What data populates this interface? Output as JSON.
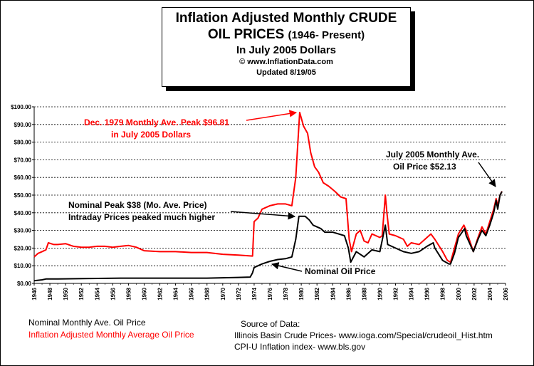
{
  "title": {
    "line1": "Inflation Adjusted Monthly CRUDE",
    "line2_main": "OIL PRICES",
    "line2_paren": "(1946- Present)",
    "line3": "In July 2005 Dollars",
    "line4": "© www.InflationData.com",
    "line5": "Updated 8/19/05"
  },
  "annotations": {
    "peak_real_1": "Dec. 1979 Monthly Ave. Peak $96.81",
    "peak_real_2": "in July 2005 Dollars",
    "peak_nominal_1": "Nominal Peak $38 (Mo. Ave. Price)",
    "peak_nominal_2": "Intraday Prices peaked much higher",
    "nominal_label": "Nominal Oil Price",
    "july2005_1": "July 2005 Monthly Ave.",
    "july2005_2": "Oil Price $52.13"
  },
  "legend": {
    "nominal": "Nominal Monthly Ave. Oil Price",
    "adjusted": "Inflation Adjusted Monthly Average Oil Price"
  },
  "source": {
    "heading": "Source of Data:",
    "line1": "Illinois Basin Crude Prices-   www.ioga.com/Special/crudeoil_Hist.htm",
    "line2": "CPI-U Inflation index-   www.bls.gov"
  },
  "colors": {
    "adjusted": "#ff0000",
    "nominal": "#000000",
    "background": "#ffffff"
  },
  "chart_data": {
    "type": "line",
    "x_range": [
      1946,
      2006
    ],
    "ylim": [
      0,
      100
    ],
    "grid": true,
    "y_ticks": [
      "$0.00",
      "$10.00",
      "$20.00",
      "$30.00",
      "$40.00",
      "$50.00",
      "$60.00",
      "$70.00",
      "$80.00",
      "$90.00",
      "$100.00"
    ],
    "x_ticks": [
      "1946",
      "1948",
      "1950",
      "1952",
      "1954",
      "1956",
      "1958",
      "1960",
      "1962",
      "1964",
      "1966",
      "1968",
      "1970",
      "1972",
      "1974",
      "1976",
      "1978",
      "1980",
      "1982",
      "1984",
      "1986",
      "1988",
      "1990",
      "1992",
      "1994",
      "1996",
      "1998",
      "2000",
      "2002",
      "2004",
      "2006"
    ],
    "series": [
      {
        "name": "Inflation Adjusted Monthly Average Oil Price",
        "color": "#ff0000",
        "points": [
          [
            1946,
            15
          ],
          [
            1946.5,
            17
          ],
          [
            1947,
            18
          ],
          [
            1947.5,
            19
          ],
          [
            1947.8,
            23
          ],
          [
            1948.5,
            22
          ],
          [
            1949,
            22
          ],
          [
            1950,
            22.5
          ],
          [
            1951,
            21
          ],
          [
            1952,
            20.5
          ],
          [
            1953,
            20.5
          ],
          [
            1954,
            21
          ],
          [
            1955,
            21
          ],
          [
            1956,
            20.5
          ],
          [
            1957,
            21
          ],
          [
            1958,
            21.5
          ],
          [
            1959,
            20.5
          ],
          [
            1960,
            18.5
          ],
          [
            1962,
            18
          ],
          [
            1964,
            18
          ],
          [
            1966,
            17.5
          ],
          [
            1968,
            17.5
          ],
          [
            1970,
            16.5
          ],
          [
            1972,
            16
          ],
          [
            1973.8,
            15.5
          ],
          [
            1974,
            35
          ],
          [
            1974.5,
            37
          ],
          [
            1975,
            42
          ],
          [
            1976,
            44
          ],
          [
            1977,
            45
          ],
          [
            1978,
            45
          ],
          [
            1978.8,
            44
          ],
          [
            1979.3,
            60
          ],
          [
            1979.8,
            96.81
          ],
          [
            1980.3,
            89
          ],
          [
            1980.8,
            85
          ],
          [
            1981.2,
            74
          ],
          [
            1981.7,
            66
          ],
          [
            1982.2,
            63
          ],
          [
            1982.8,
            57
          ],
          [
            1983.5,
            55
          ],
          [
            1984.3,
            52
          ],
          [
            1985,
            49
          ],
          [
            1985.7,
            48
          ],
          [
            1986.1,
            25
          ],
          [
            1986.4,
            18
          ],
          [
            1987,
            28
          ],
          [
            1987.5,
            30
          ],
          [
            1988,
            24
          ],
          [
            1988.5,
            23
          ],
          [
            1989,
            28
          ],
          [
            1990,
            26
          ],
          [
            1990.3,
            27
          ],
          [
            1990.7,
            50
          ],
          [
            1990.9,
            40
          ],
          [
            1991.2,
            28
          ],
          [
            1992,
            27
          ],
          [
            1993,
            25
          ],
          [
            1993.5,
            21
          ],
          [
            1994,
            23
          ],
          [
            1995,
            22
          ],
          [
            1996,
            26
          ],
          [
            1996.5,
            28
          ],
          [
            1997,
            25
          ],
          [
            1998,
            18
          ],
          [
            1998.6,
            13
          ],
          [
            1999,
            12
          ],
          [
            1999.5,
            20
          ],
          [
            2000,
            28
          ],
          [
            2000.7,
            33
          ],
          [
            2001,
            30
          ],
          [
            2001.6,
            22
          ],
          [
            2001.9,
            18
          ],
          [
            2002.5,
            26
          ],
          [
            2003,
            32
          ],
          [
            2003.5,
            28
          ],
          [
            2004,
            35
          ],
          [
            2004.5,
            42
          ],
          [
            2004.8,
            48
          ],
          [
            2005,
            44
          ],
          [
            2005.3,
            50
          ],
          [
            2005.55,
            52.13
          ]
        ]
      },
      {
        "name": "Nominal Monthly Ave. Oil Price",
        "color": "#000000",
        "points": [
          [
            1946,
            1.5
          ],
          [
            1947,
            2
          ],
          [
            1947.5,
            2.5
          ],
          [
            1949,
            2.5
          ],
          [
            1953,
            2.8
          ],
          [
            1957,
            3
          ],
          [
            1960,
            3
          ],
          [
            1968,
            3
          ],
          [
            1970,
            3.2
          ],
          [
            1972,
            3.4
          ],
          [
            1973.5,
            3.6
          ],
          [
            1973.8,
            6
          ],
          [
            1974,
            9
          ],
          [
            1975,
            11
          ],
          [
            1976,
            12.5
          ],
          [
            1977,
            13.5
          ],
          [
            1978,
            14
          ],
          [
            1978.8,
            15
          ],
          [
            1979.3,
            25
          ],
          [
            1979.7,
            38
          ],
          [
            1980.5,
            38
          ],
          [
            1981,
            36
          ],
          [
            1981.5,
            33
          ],
          [
            1982.5,
            31
          ],
          [
            1983,
            29
          ],
          [
            1984,
            29
          ],
          [
            1985.5,
            27
          ],
          [
            1986,
            20
          ],
          [
            1986.3,
            12
          ],
          [
            1987,
            18
          ],
          [
            1988,
            15
          ],
          [
            1989,
            19
          ],
          [
            1990,
            18
          ],
          [
            1990.7,
            33
          ],
          [
            1991,
            22
          ],
          [
            1992,
            20
          ],
          [
            1993,
            18
          ],
          [
            1994,
            17
          ],
          [
            1995,
            18
          ],
          [
            1996,
            21
          ],
          [
            1996.8,
            23
          ],
          [
            1997,
            20
          ],
          [
            1998,
            13
          ],
          [
            1998.8,
            11
          ],
          [
            1999,
            11
          ],
          [
            1999.5,
            17
          ],
          [
            2000,
            26
          ],
          [
            2000.8,
            31
          ],
          [
            2001,
            27
          ],
          [
            2001.9,
            18
          ],
          [
            2002.5,
            25
          ],
          [
            2003,
            30
          ],
          [
            2003.5,
            27
          ],
          [
            2004,
            33
          ],
          [
            2004.5,
            40
          ],
          [
            2004.8,
            47
          ],
          [
            2005,
            42
          ],
          [
            2005.3,
            50
          ],
          [
            2005.55,
            52
          ]
        ]
      }
    ]
  }
}
